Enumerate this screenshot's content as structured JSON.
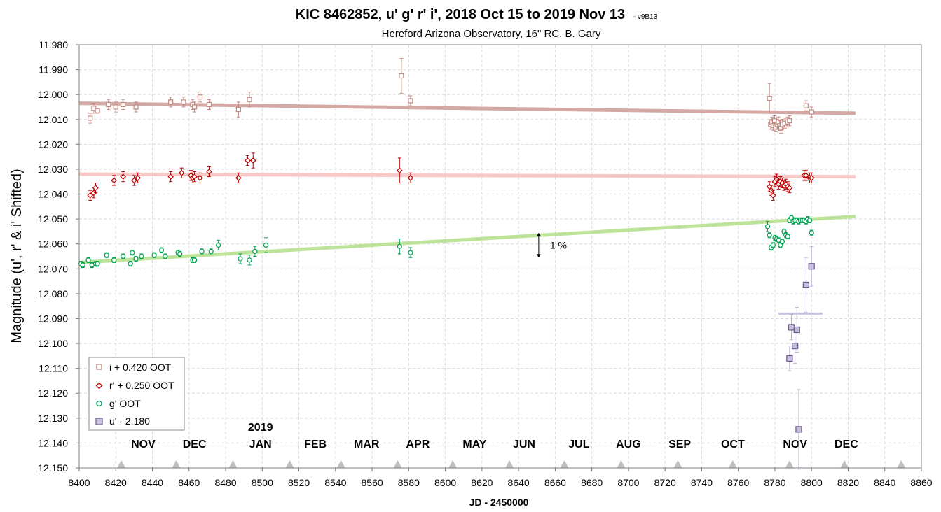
{
  "chart_data": {
    "type": "scatter",
    "title": "KIC 8462852, u' g' r' i', 2018 Oct 15 to 2019 Nov 13",
    "title_suffix": "- v9B13",
    "subtitle": "Hereford Arizona Observatory, 16\" RC, B. Gary",
    "xlabel": "JD - 2450000",
    "ylabel": "Magnitude  (u', r' & i' Shifted)",
    "xlim": [
      8400,
      8860
    ],
    "ylim": [
      12.15,
      11.98
    ],
    "y_reversed": true,
    "x_ticks": [
      "8400",
      "8420",
      "8440",
      "8460",
      "8480",
      "8500",
      "8520",
      "8540",
      "8560",
      "8580",
      "8600",
      "8620",
      "8640",
      "8660",
      "8680",
      "8700",
      "8720",
      "8740",
      "8760",
      "8780",
      "8800",
      "8820",
      "8840",
      "8860"
    ],
    "y_ticks": [
      "11.980",
      "11.990",
      "12.000",
      "12.010",
      "12.020",
      "12.030",
      "12.040",
      "12.050",
      "12.060",
      "12.070",
      "12.080",
      "12.090",
      "12.100",
      "12.110",
      "12.120",
      "12.130",
      "12.140",
      "12.150"
    ],
    "grid": true,
    "legend_placement": "bottom-left",
    "year_label": {
      "text": "2019",
      "x": 8499
    },
    "months": [
      {
        "label": "NOV",
        "x": 8435
      },
      {
        "label": "DEC",
        "x": 8463
      },
      {
        "label": "JAN",
        "x": 8499
      },
      {
        "label": "FEB",
        "x": 8529
      },
      {
        "label": "MAR",
        "x": 8557
      },
      {
        "label": "APR",
        "x": 8585
      },
      {
        "label": "MAY",
        "x": 8616
      },
      {
        "label": "JUN",
        "x": 8643
      },
      {
        "label": "JUL",
        "x": 8673
      },
      {
        "label": "AUG",
        "x": 8700
      },
      {
        "label": "SEP",
        "x": 8728
      },
      {
        "label": "OCT",
        "x": 8757
      },
      {
        "label": "NOV",
        "x": 8791
      },
      {
        "label": "DEC",
        "x": 8819
      }
    ],
    "month_markers_x": [
      8423,
      8453,
      8484,
      8515,
      8543,
      8574,
      8604,
      8635,
      8665,
      8696,
      8727,
      8757,
      8788,
      8818,
      8849
    ],
    "annotation": {
      "text": "1 %",
      "x": 8651,
      "y_from": 12.0555,
      "y_to": 12.0655
    },
    "colors": {
      "i": "#c08880",
      "r": "#c00000",
      "g": "#00a050",
      "u": "#7a6aa0",
      "i_fit": "#d4a8a4",
      "r_fit": "#f8c8c8",
      "g_fit": "#bde39a",
      "u_fit": "#c8c0dc"
    },
    "fits": [
      {
        "series": "i",
        "x": [
          8400,
          8824
        ],
        "y": [
          12.0035,
          12.0075
        ]
      },
      {
        "series": "r",
        "x": [
          8400,
          8824
        ],
        "y": [
          12.032,
          12.033
        ]
      },
      {
        "series": "g",
        "x": [
          8400,
          8824
        ],
        "y": [
          12.0675,
          12.049
        ]
      },
      {
        "series": "u",
        "x": [
          8782,
          8806
        ],
        "y": [
          12.088,
          12.088
        ]
      }
    ],
    "series": [
      {
        "key": "i",
        "name": "i + 0.420 OOT",
        "marker": "square-open",
        "x": [
          8406,
          8408,
          8410,
          8416,
          8420,
          8424,
          8431,
          8450,
          8457,
          8462,
          8463,
          8466,
          8471,
          8487,
          8493,
          8576,
          8581,
          8777,
          8777.7,
          8778.4,
          8779.1,
          8779.8,
          8780.5,
          8781.2,
          8781.9,
          8782.6,
          8783.3,
          8784,
          8785.5,
          8787,
          8788,
          8797,
          8800
        ],
        "y": [
          12.0095,
          12.0055,
          12.0065,
          12.004,
          12.005,
          12.004,
          12.005,
          12.003,
          12.003,
          12.004,
          12.005,
          12.001,
          12.004,
          12.006,
          12.002,
          11.9925,
          12.0025,
          12.0015,
          12.012,
          12.011,
          12.0125,
          12.0105,
          12.013,
          12.012,
          12.011,
          12.0125,
          12.0135,
          12.012,
          12.0115,
          12.011,
          12.0105,
          12.0045,
          12.007
        ],
        "err": [
          0.002,
          0.002,
          0.001,
          0.002,
          0.002,
          0.002,
          0.002,
          0.002,
          0.002,
          0.002,
          0.002,
          0.002,
          0.002,
          0.003,
          0.003,
          0.007,
          0.002,
          0.006,
          0.002,
          0.002,
          0.002,
          0.002,
          0.002,
          0.002,
          0.002,
          0.002,
          0.002,
          0.002,
          0.002,
          0.002,
          0.002,
          0.002,
          0.002
        ]
      },
      {
        "key": "r",
        "name": "r' + 0.250 OOT",
        "marker": "diamond-open",
        "x": [
          8406,
          8408,
          8409,
          8419,
          8424,
          8430,
          8432,
          8450,
          8456,
          8461,
          8462,
          8463,
          8466,
          8471,
          8487,
          8492,
          8495,
          8575,
          8581,
          8777,
          8778,
          8779,
          8780,
          8781,
          8782,
          8783,
          8784,
          8785,
          8786,
          8787,
          8788,
          8796,
          8797,
          8799,
          8800
        ],
        "y": [
          12.0405,
          12.0395,
          12.0375,
          12.0345,
          12.033,
          12.0345,
          12.0335,
          12.033,
          12.0315,
          12.0325,
          12.0335,
          12.033,
          12.0335,
          12.031,
          12.0335,
          12.0265,
          12.0265,
          12.0305,
          12.0335,
          12.037,
          12.0385,
          12.0405,
          12.035,
          12.034,
          12.036,
          12.035,
          12.0355,
          12.0365,
          12.036,
          12.037,
          12.0375,
          12.0325,
          12.0325,
          12.0335,
          12.0335
        ],
        "err": [
          0.002,
          0.002,
          0.002,
          0.002,
          0.002,
          0.002,
          0.002,
          0.002,
          0.002,
          0.002,
          0.002,
          0.002,
          0.002,
          0.002,
          0.002,
          0.002,
          0.003,
          0.005,
          0.002,
          0.002,
          0.002,
          0.002,
          0.002,
          0.002,
          0.002,
          0.002,
          0.002,
          0.002,
          0.002,
          0.002,
          0.002,
          0.002,
          0.002,
          0.002,
          0.002
        ]
      },
      {
        "key": "g",
        "name": "g' OOT",
        "marker": "circle-open",
        "x": [
          8401,
          8402,
          8405,
          8407,
          8409,
          8410,
          8415,
          8419,
          8424,
          8428,
          8429,
          8431,
          8434,
          8441,
          8445,
          8447,
          8454,
          8455,
          8462,
          8463,
          8467,
          8472,
          8476,
          8488,
          8493,
          8496,
          8502,
          8575,
          8581,
          8776,
          8777,
          8778,
          8779,
          8780,
          8781,
          8782,
          8783,
          8784,
          8785,
          8786,
          8787,
          8788,
          8789,
          8790,
          8791,
          8792,
          8793,
          8794,
          8795,
          8796,
          8797,
          8798,
          8799,
          8800
        ],
        "y": [
          12.068,
          12.0685,
          12.0665,
          12.0685,
          12.068,
          12.068,
          12.0645,
          12.0665,
          12.065,
          12.068,
          12.0635,
          12.066,
          12.065,
          12.0645,
          12.0625,
          12.065,
          12.0635,
          12.064,
          12.0665,
          12.0665,
          12.063,
          12.063,
          12.0605,
          12.066,
          12.0665,
          12.063,
          12.0605,
          12.061,
          12.0635,
          12.053,
          12.0565,
          12.0615,
          12.0605,
          12.0575,
          12.058,
          12.0585,
          12.0605,
          12.059,
          12.055,
          12.0565,
          12.057,
          12.0505,
          12.0495,
          12.051,
          12.0505,
          12.0505,
          12.051,
          12.0505,
          12.0505,
          12.0505,
          12.051,
          12.05,
          12.0505,
          12.0555
        ],
        "err": [
          0.001,
          0.001,
          0.001,
          0.001,
          0.001,
          0.001,
          0.001,
          0.001,
          0.001,
          0.001,
          0.001,
          0.001,
          0.001,
          0.001,
          0.001,
          0.001,
          0.001,
          0.001,
          0.001,
          0.001,
          0.001,
          0.001,
          0.002,
          0.002,
          0.002,
          0.002,
          0.003,
          0.003,
          0.002,
          0.002,
          0.001,
          0.001,
          0.001,
          0.001,
          0.001,
          0.001,
          0.001,
          0.001,
          0.001,
          0.001,
          0.001,
          0.001,
          0.001,
          0.001,
          0.001,
          0.001,
          0.001,
          0.001,
          0.001,
          0.001,
          0.001,
          0.001,
          0.001,
          0.001
        ]
      },
      {
        "key": "u",
        "name": "u' - 2.180",
        "marker": "square-filled",
        "x": [
          8788,
          8789,
          8791,
          8792,
          8793,
          8797,
          8800
        ],
        "y": [
          12.106,
          12.0935,
          12.101,
          12.0945,
          12.1345,
          12.0765,
          12.069
        ],
        "err": [
          0.005,
          0.005,
          0.007,
          0.009,
          0.016,
          0.011,
          0.008
        ]
      }
    ]
  }
}
